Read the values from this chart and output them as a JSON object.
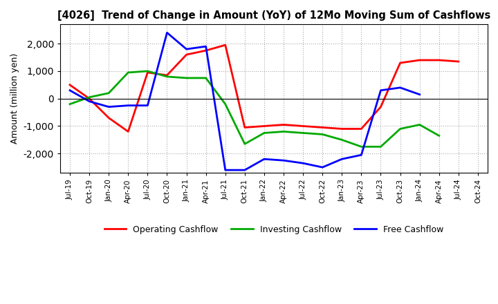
{
  "title": "[4026]  Trend of Change in Amount (YoY) of 12Mo Moving Sum of Cashflows",
  "ylabel": "Amount (million yen)",
  "x_labels": [
    "Jul-19",
    "Oct-19",
    "Jan-20",
    "Apr-20",
    "Jul-20",
    "Oct-20",
    "Jan-21",
    "Apr-21",
    "Jul-21",
    "Oct-21",
    "Jan-22",
    "Apr-22",
    "Jul-22",
    "Oct-22",
    "Jan-23",
    "Apr-23",
    "Jul-23",
    "Oct-23",
    "Jan-24",
    "Apr-24",
    "Jul-24",
    "Oct-24"
  ],
  "operating": [
    500,
    0,
    -700,
    -1200,
    950,
    850,
    1600,
    1750,
    1950,
    -1050,
    -1000,
    -950,
    -1000,
    -1050,
    -1100,
    -1100,
    -300,
    1300,
    1400,
    1400,
    1350,
    null
  ],
  "investing": [
    -200,
    50,
    200,
    950,
    1000,
    800,
    750,
    750,
    -200,
    -1650,
    -1250,
    -1200,
    -1250,
    -1300,
    -1500,
    -1750,
    -1750,
    -1100,
    -950,
    -1350,
    null,
    null
  ],
  "free": [
    300,
    -100,
    -300,
    -250,
    -250,
    2400,
    1800,
    1900,
    -2600,
    -2600,
    -2200,
    -2250,
    -2350,
    -2500,
    -2200,
    -2050,
    300,
    400,
    150,
    null,
    null,
    null
  ],
  "operating_color": "#FF0000",
  "investing_color": "#00AA00",
  "free_color": "#0000FF",
  "ylim": [
    -2700,
    2700
  ],
  "yticks": [
    -2000,
    -1000,
    0,
    1000,
    2000
  ],
  "background_color": "#FFFFFF",
  "grid_color": "#AAAAAA"
}
